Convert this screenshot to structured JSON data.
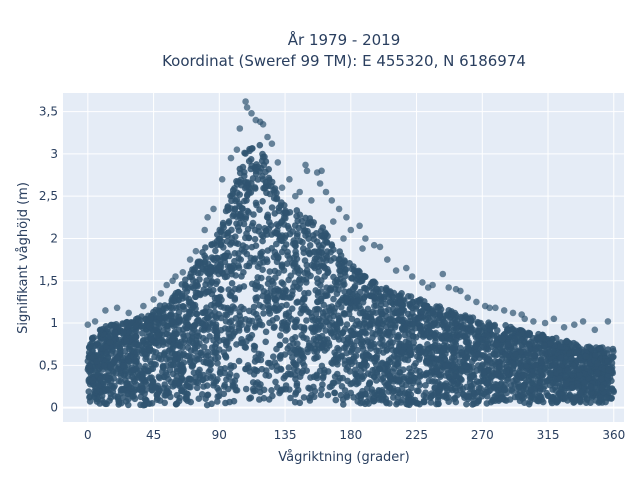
{
  "chart_data": {
    "type": "scatter",
    "title": "År 1979 - 2019",
    "subtitle": "Koordinat (Sweref 99 TM): E 455320, N 6186974",
    "xlabel": "Vågriktning (grader)",
    "ylabel": "Signifikant våghöjd (m)",
    "xlim": [
      -17,
      367
    ],
    "ylim": [
      -0.17,
      3.72
    ],
    "x_ticks": [
      0,
      45,
      90,
      135,
      180,
      225,
      270,
      315,
      360
    ],
    "x_tick_labels": [
      "0",
      "45",
      "90",
      "135",
      "180",
      "225",
      "270",
      "315",
      "360"
    ],
    "y_ticks": [
      0,
      0.5,
      1,
      1.5,
      2,
      2.5,
      3,
      3.5
    ],
    "y_tick_labels": [
      "0",
      "0,5",
      "1",
      "1,5",
      "2",
      "2,5",
      "3",
      "3,5"
    ],
    "grid": true,
    "legend": "none",
    "colors": {
      "marker": "#2f5470",
      "plot_bg": "#e5ecf6",
      "grid": "#ffffff"
    },
    "envelope": {
      "x": [
        0,
        10,
        20,
        30,
        45,
        60,
        70,
        80,
        90,
        95,
        100,
        105,
        110,
        115,
        120,
        125,
        130,
        140,
        150,
        160,
        170,
        180,
        190,
        200,
        210,
        225,
        240,
        255,
        270,
        285,
        300,
        315,
        330,
        345,
        360
      ],
      "upper": [
        0.82,
        0.95,
        1.0,
        1.05,
        1.15,
        1.35,
        1.6,
        1.9,
        2.1,
        2.35,
        2.65,
        2.9,
        3.15,
        3.3,
        3.05,
        2.75,
        2.55,
        2.35,
        2.3,
        2.15,
        1.95,
        1.7,
        1.55,
        1.45,
        1.38,
        1.3,
        1.2,
        1.12,
        1.02,
        0.98,
        0.9,
        0.85,
        0.78,
        0.72,
        0.7
      ],
      "lower": [
        0.05,
        0.04,
        0.03,
        0.03,
        0.02,
        0.02,
        0.02,
        0.02,
        0.02,
        0.03,
        0.05,
        0.06,
        0.07,
        0.07,
        0.06,
        0.05,
        0.05,
        0.04,
        0.04,
        0.04,
        0.03,
        0.03,
        0.03,
        0.03,
        0.03,
        0.03,
        0.03,
        0.03,
        0.04,
        0.04,
        0.04,
        0.04,
        0.05,
        0.05,
        0.06
      ]
    },
    "outliers": [
      {
        "x": 108,
        "y": 3.62
      },
      {
        "x": 109,
        "y": 3.55
      },
      {
        "x": 112,
        "y": 3.48
      },
      {
        "x": 115,
        "y": 3.4
      },
      {
        "x": 118,
        "y": 3.38
      },
      {
        "x": 104,
        "y": 3.3
      },
      {
        "x": 120,
        "y": 3.35
      },
      {
        "x": 123,
        "y": 3.2
      },
      {
        "x": 126,
        "y": 3.12
      },
      {
        "x": 98,
        "y": 2.95
      },
      {
        "x": 102,
        "y": 3.05
      },
      {
        "x": 92,
        "y": 2.7
      },
      {
        "x": 86,
        "y": 2.35
      },
      {
        "x": 82,
        "y": 2.25
      },
      {
        "x": 80,
        "y": 2.1
      },
      {
        "x": 130,
        "y": 2.9
      },
      {
        "x": 133,
        "y": 2.6
      },
      {
        "x": 145,
        "y": 2.55
      },
      {
        "x": 149,
        "y": 2.87
      },
      {
        "x": 150,
        "y": 2.8
      },
      {
        "x": 157,
        "y": 2.78
      },
      {
        "x": 160,
        "y": 2.8
      },
      {
        "x": 159,
        "y": 2.65
      },
      {
        "x": 163,
        "y": 2.55
      },
      {
        "x": 167,
        "y": 2.45
      },
      {
        "x": 172,
        "y": 2.35
      },
      {
        "x": 177,
        "y": 2.25
      },
      {
        "x": 180,
        "y": 2.1
      },
      {
        "x": 186,
        "y": 2.15
      },
      {
        "x": 190,
        "y": 2.0
      },
      {
        "x": 196,
        "y": 1.92
      },
      {
        "x": 200,
        "y": 1.9
      },
      {
        "x": 205,
        "y": 1.75
      },
      {
        "x": 211,
        "y": 1.62
      },
      {
        "x": 218,
        "y": 1.65
      },
      {
        "x": 222,
        "y": 1.55
      },
      {
        "x": 229,
        "y": 1.48
      },
      {
        "x": 236,
        "y": 1.45
      },
      {
        "x": 243,
        "y": 1.58
      },
      {
        "x": 247,
        "y": 1.42
      },
      {
        "x": 255,
        "y": 1.38
      },
      {
        "x": 260,
        "y": 1.3
      },
      {
        "x": 266,
        "y": 1.25
      },
      {
        "x": 272,
        "y": 1.2
      },
      {
        "x": 279,
        "y": 1.18
      },
      {
        "x": 285,
        "y": 1.15
      },
      {
        "x": 291,
        "y": 1.12
      },
      {
        "x": 299,
        "y": 1.05
      },
      {
        "x": 305,
        "y": 1.02
      },
      {
        "x": 313,
        "y": 1.0
      },
      {
        "x": 319,
        "y": 1.05
      },
      {
        "x": 326,
        "y": 0.95
      },
      {
        "x": 333,
        "y": 0.98
      },
      {
        "x": 339,
        "y": 1.02
      },
      {
        "x": 347,
        "y": 0.92
      },
      {
        "x": 356,
        "y": 1.02
      },
      {
        "x": 60,
        "y": 1.55
      },
      {
        "x": 65,
        "y": 1.6
      },
      {
        "x": 70,
        "y": 1.75
      },
      {
        "x": 74,
        "y": 1.85
      },
      {
        "x": 50,
        "y": 1.35
      },
      {
        "x": 45,
        "y": 1.28
      },
      {
        "x": 38,
        "y": 1.2
      },
      {
        "x": 28,
        "y": 1.12
      },
      {
        "x": 20,
        "y": 1.18
      },
      {
        "x": 12,
        "y": 1.15
      },
      {
        "x": 5,
        "y": 1.02
      },
      {
        "x": 0,
        "y": 0.98
      },
      {
        "x": 54,
        "y": 1.45
      },
      {
        "x": 58,
        "y": 1.5
      },
      {
        "x": 168,
        "y": 2.2
      },
      {
        "x": 138,
        "y": 2.7
      },
      {
        "x": 142,
        "y": 2.5
      },
      {
        "x": 153,
        "y": 2.45
      },
      {
        "x": 175,
        "y": 2.0
      },
      {
        "x": 188,
        "y": 1.88
      },
      {
        "x": 233,
        "y": 1.42
      },
      {
        "x": 252,
        "y": 1.4
      },
      {
        "x": 275,
        "y": 1.18
      },
      {
        "x": 297,
        "y": 1.1
      }
    ]
  }
}
